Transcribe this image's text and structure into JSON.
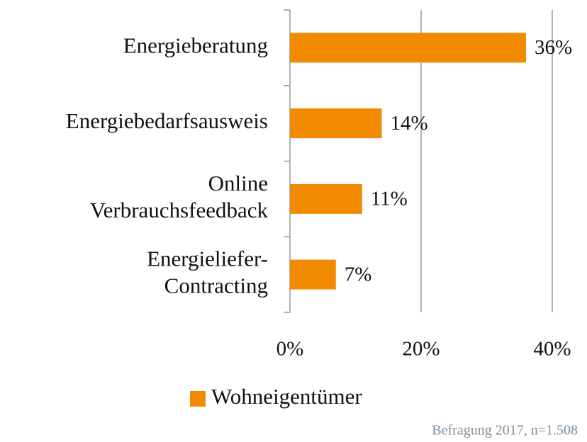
{
  "chart_data": {
    "type": "hbar",
    "categories": [
      "Energieberatung",
      "Energiebedarfsausweis",
      "Online\nVerbrauchsfeedback",
      "Energieliefer-\nContracting"
    ],
    "series": [
      {
        "name": "Wohneigentümer",
        "color": "#f28a00",
        "values": [
          36,
          14,
          11,
          7
        ],
        "value_labels": [
          "36%",
          "14%",
          "11%",
          "7%"
        ]
      }
    ],
    "xlim": [
      0,
      40
    ],
    "xticks": [
      {
        "value": 0,
        "label": "0%"
      },
      {
        "value": 20,
        "label": "20%"
      },
      {
        "value": 40,
        "label": "40%"
      }
    ],
    "grid": true,
    "legend": "bottom",
    "note": "Befragung 2017, n=1.508"
  }
}
